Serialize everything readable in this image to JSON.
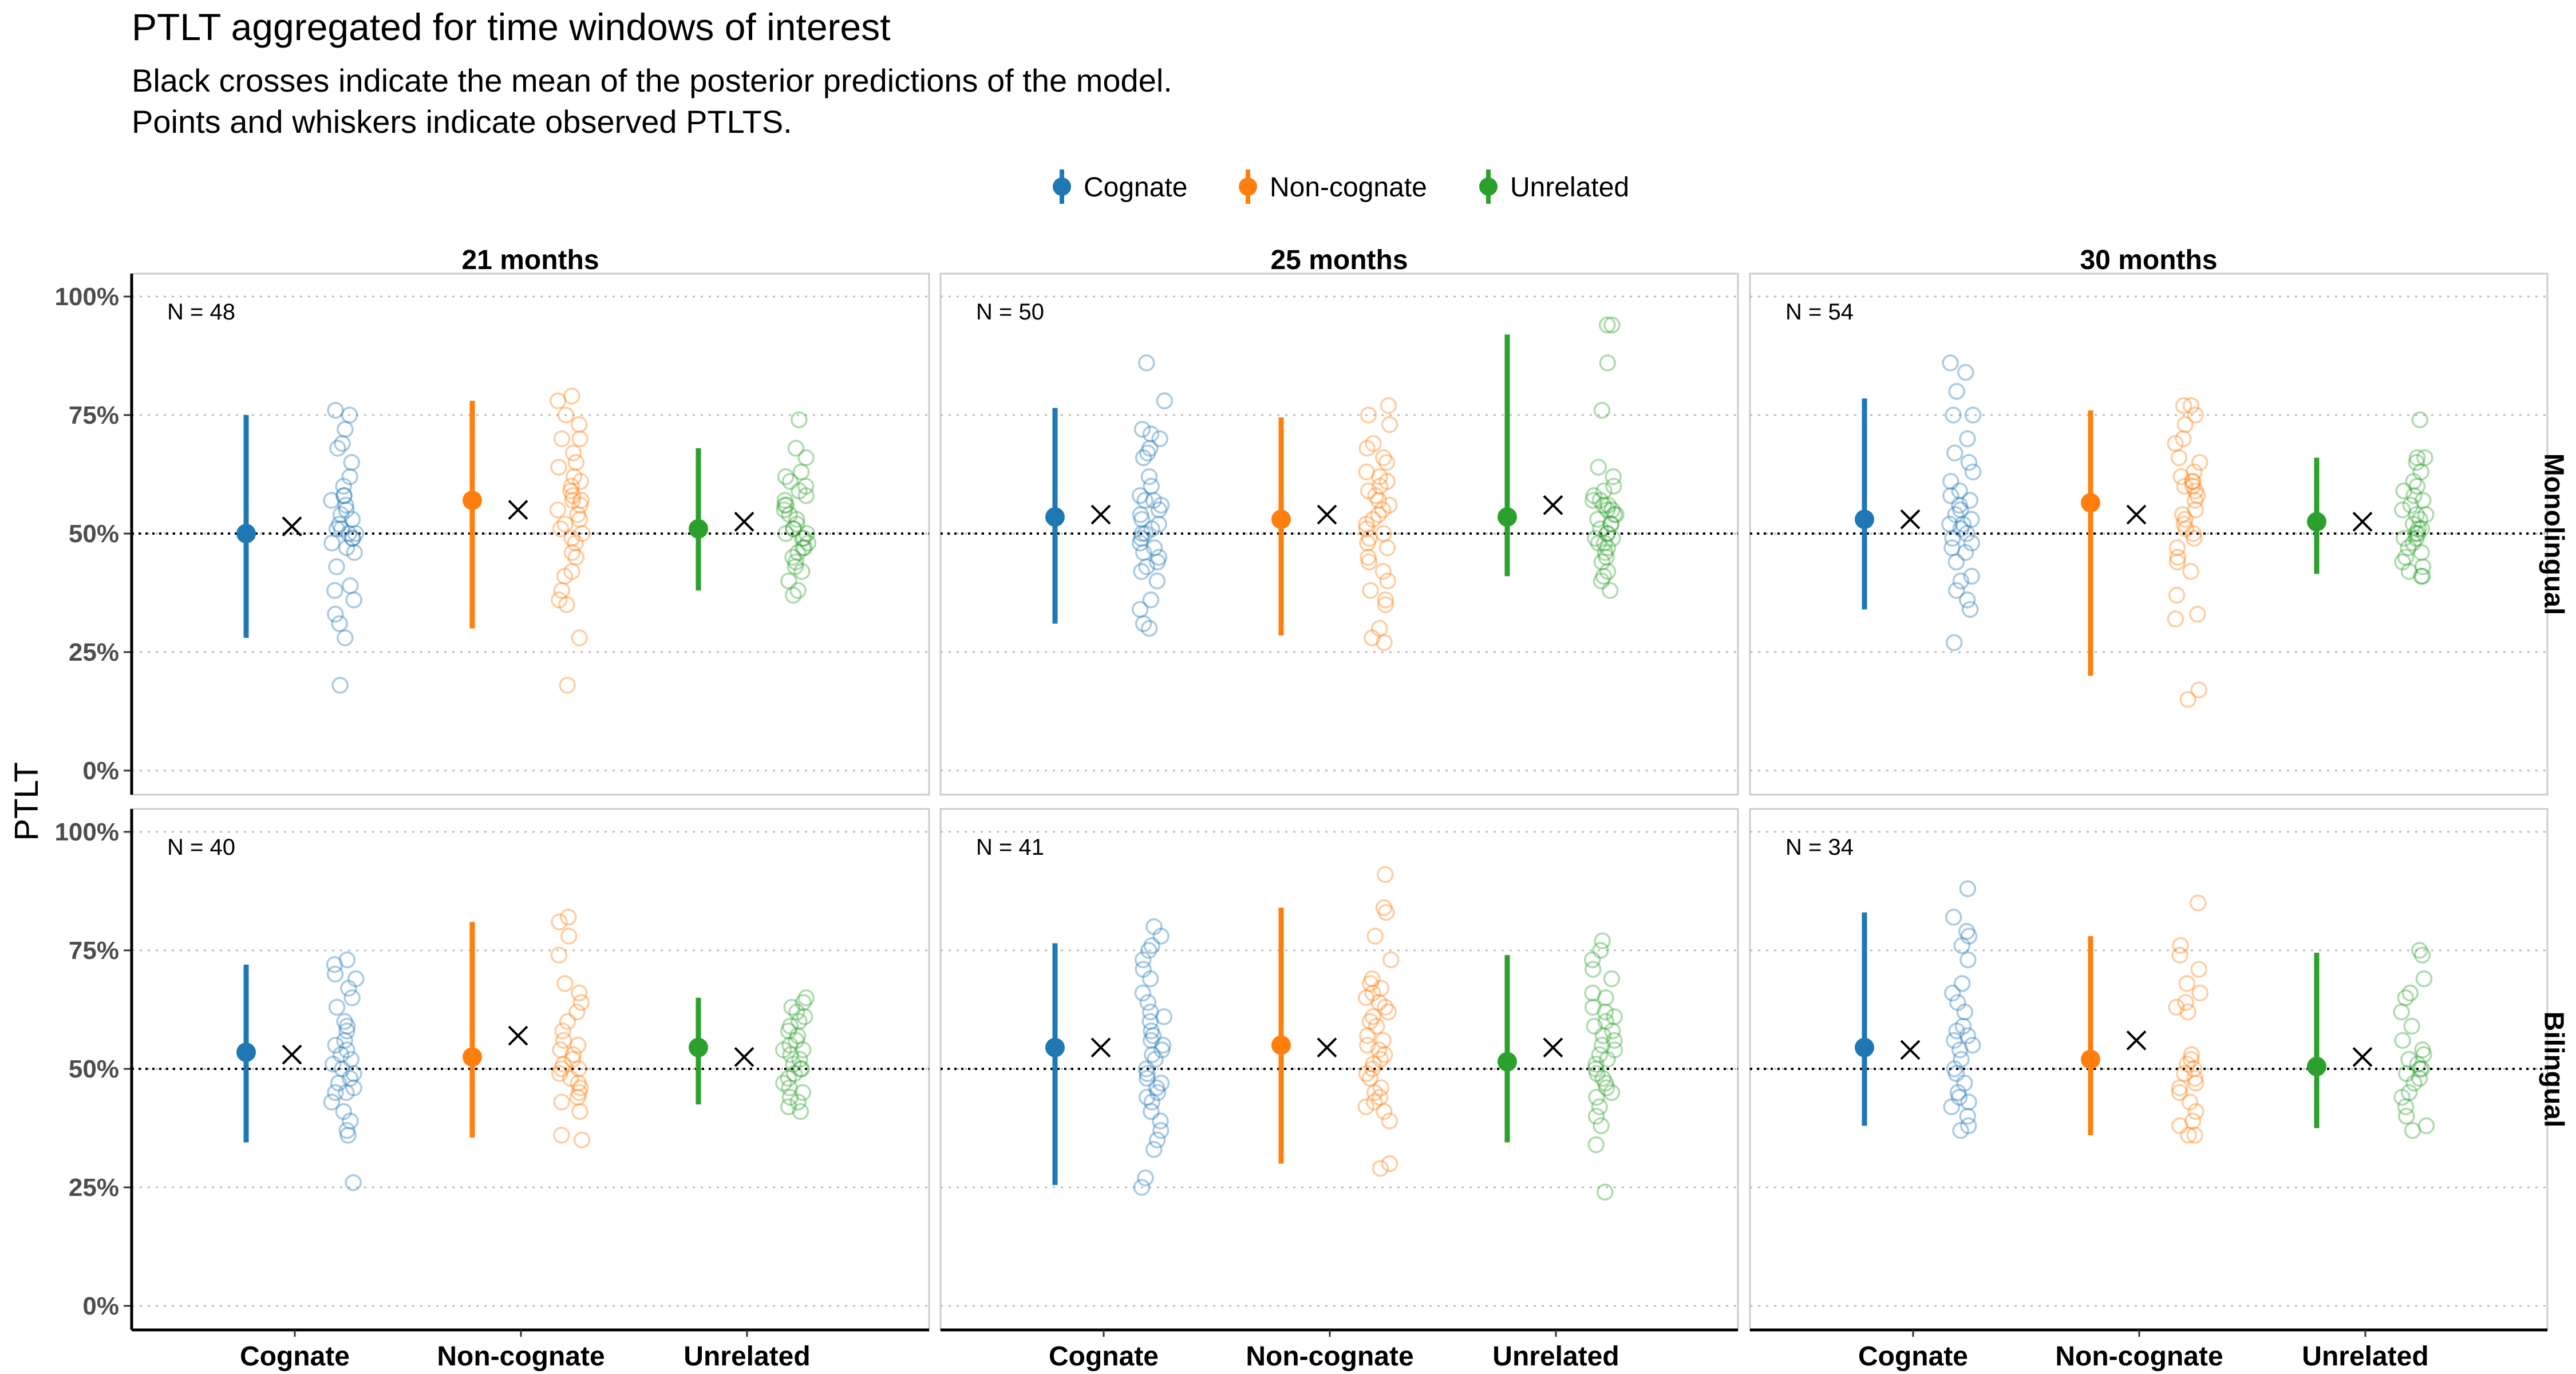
{
  "chart_data": {
    "type": "scatter",
    "title": "PTLT aggregated for time windows of interest",
    "subtitle": [
      "Black crosses indicate the mean of the posterior predictions of the model.",
      "Points and whiskers indicate observed PTLTS."
    ],
    "ylabel": "PTLT",
    "ylim": [
      0,
      1
    ],
    "y_ticks": [
      "0%",
      "25%",
      "50%",
      "75%",
      "100%"
    ],
    "y_tick_values": [
      0,
      0.25,
      0.5,
      0.75,
      1
    ],
    "reference_line": 0.5,
    "categories": [
      "Cognate",
      "Non-cognate",
      "Unrelated"
    ],
    "colors": {
      "Cognate": "#1f77b4",
      "Non-cognate": "#ff7f0e",
      "Unrelated": "#2ca02c"
    },
    "legend": {
      "placement": "top",
      "items": [
        "Cognate",
        "Non-cognate",
        "Unrelated"
      ]
    },
    "columns": [
      "21 months",
      "25 months",
      "30 months"
    ],
    "rows": [
      "Monolingual",
      "Bilingual"
    ],
    "panels": [
      {
        "row": "Monolingual",
        "column": "21 months",
        "n_label": "N = 48",
        "series": [
          {
            "category": "Cognate",
            "mean": 0.5,
            "lower": 0.28,
            "upper": 0.75,
            "prediction": 0.515,
            "points": [
              0.76,
              0.75,
              0.72,
              0.69,
              0.68,
              0.65,
              0.62,
              0.6,
              0.58,
              0.58,
              0.57,
              0.56,
              0.55,
              0.54,
              0.53,
              0.52,
              0.51,
              0.51,
              0.5,
              0.5,
              0.49,
              0.49,
              0.48,
              0.47,
              0.46,
              0.43,
              0.39,
              0.38,
              0.36,
              0.33,
              0.31,
              0.28,
              0.18
            ]
          },
          {
            "category": "Non-cognate",
            "mean": 0.57,
            "lower": 0.3,
            "upper": 0.78,
            "prediction": 0.55,
            "points": [
              0.79,
              0.78,
              0.75,
              0.73,
              0.7,
              0.7,
              0.67,
              0.65,
              0.64,
              0.62,
              0.61,
              0.6,
              0.59,
              0.58,
              0.57,
              0.57,
              0.56,
              0.55,
              0.54,
              0.53,
              0.52,
              0.51,
              0.5,
              0.49,
              0.48,
              0.46,
              0.45,
              0.42,
              0.41,
              0.38,
              0.36,
              0.35,
              0.28,
              0.18
            ]
          },
          {
            "category": "Unrelated",
            "mean": 0.51,
            "lower": 0.38,
            "upper": 0.68,
            "prediction": 0.525,
            "points": [
              0.74,
              0.68,
              0.66,
              0.63,
              0.62,
              0.61,
              0.6,
              0.59,
              0.58,
              0.57,
              0.56,
              0.56,
              0.55,
              0.54,
              0.53,
              0.52,
              0.51,
              0.51,
              0.5,
              0.5,
              0.49,
              0.49,
              0.48,
              0.47,
              0.47,
              0.46,
              0.45,
              0.44,
              0.43,
              0.42,
              0.4,
              0.38,
              0.37
            ]
          }
        ]
      },
      {
        "row": "Monolingual",
        "column": "25 months",
        "n_label": "N = 50",
        "series": [
          {
            "category": "Cognate",
            "mean": 0.535,
            "lower": 0.31,
            "upper": 0.765,
            "prediction": 0.54,
            "points": [
              0.86,
              0.78,
              0.72,
              0.71,
              0.7,
              0.68,
              0.67,
              0.66,
              0.62,
              0.6,
              0.58,
              0.57,
              0.57,
              0.56,
              0.55,
              0.54,
              0.53,
              0.52,
              0.51,
              0.5,
              0.5,
              0.49,
              0.48,
              0.47,
              0.46,
              0.45,
              0.44,
              0.43,
              0.42,
              0.4,
              0.36,
              0.34,
              0.31,
              0.3
            ]
          },
          {
            "category": "Non-cognate",
            "mean": 0.53,
            "lower": 0.285,
            "upper": 0.745,
            "prediction": 0.54,
            "points": [
              0.77,
              0.75,
              0.73,
              0.69,
              0.68,
              0.66,
              0.65,
              0.63,
              0.62,
              0.61,
              0.6,
              0.59,
              0.58,
              0.57,
              0.56,
              0.55,
              0.54,
              0.53,
              0.52,
              0.51,
              0.5,
              0.49,
              0.48,
              0.47,
              0.45,
              0.44,
              0.42,
              0.4,
              0.38,
              0.36,
              0.35,
              0.3,
              0.28,
              0.27
            ]
          },
          {
            "category": "Unrelated",
            "mean": 0.535,
            "lower": 0.41,
            "upper": 0.92,
            "prediction": 0.56,
            "points": [
              0.94,
              0.94,
              0.86,
              0.76,
              0.64,
              0.62,
              0.6,
              0.59,
              0.58,
              0.57,
              0.57,
              0.56,
              0.56,
              0.55,
              0.55,
              0.54,
              0.54,
              0.53,
              0.52,
              0.52,
              0.51,
              0.5,
              0.5,
              0.49,
              0.49,
              0.48,
              0.48,
              0.47,
              0.46,
              0.45,
              0.44,
              0.42,
              0.41,
              0.4,
              0.38
            ]
          }
        ]
      },
      {
        "row": "Monolingual",
        "column": "30 months",
        "n_label": "N = 54",
        "series": [
          {
            "category": "Cognate",
            "mean": 0.53,
            "lower": 0.34,
            "upper": 0.785,
            "prediction": 0.53,
            "points": [
              0.86,
              0.84,
              0.8,
              0.75,
              0.75,
              0.7,
              0.67,
              0.65,
              0.63,
              0.61,
              0.59,
              0.58,
              0.57,
              0.56,
              0.55,
              0.54,
              0.53,
              0.52,
              0.52,
              0.51,
              0.5,
              0.49,
              0.48,
              0.47,
              0.46,
              0.44,
              0.41,
              0.4,
              0.38,
              0.36,
              0.34,
              0.27
            ]
          },
          {
            "category": "Non-cognate",
            "mean": 0.565,
            "lower": 0.2,
            "upper": 0.76,
            "prediction": 0.54,
            "points": [
              0.77,
              0.77,
              0.75,
              0.73,
              0.7,
              0.69,
              0.66,
              0.65,
              0.63,
              0.62,
              0.61,
              0.61,
              0.6,
              0.6,
              0.59,
              0.58,
              0.57,
              0.55,
              0.54,
              0.53,
              0.52,
              0.51,
              0.5,
              0.49,
              0.47,
              0.45,
              0.44,
              0.42,
              0.37,
              0.33,
              0.32,
              0.17,
              0.15
            ]
          },
          {
            "category": "Unrelated",
            "mean": 0.525,
            "lower": 0.415,
            "upper": 0.66,
            "prediction": 0.525,
            "points": [
              0.74,
              0.66,
              0.66,
              0.65,
              0.63,
              0.61,
              0.6,
              0.59,
              0.58,
              0.57,
              0.56,
              0.55,
              0.54,
              0.54,
              0.53,
              0.52,
              0.51,
              0.51,
              0.5,
              0.5,
              0.49,
              0.49,
              0.48,
              0.47,
              0.46,
              0.45,
              0.44,
              0.43,
              0.42,
              0.41,
              0.41
            ]
          }
        ]
      },
      {
        "row": "Bilingual",
        "column": "21 months",
        "n_label": "N = 40",
        "series": [
          {
            "category": "Cognate",
            "mean": 0.535,
            "lower": 0.345,
            "upper": 0.72,
            "prediction": 0.53,
            "points": [
              0.73,
              0.72,
              0.7,
              0.69,
              0.67,
              0.65,
              0.63,
              0.6,
              0.59,
              0.58,
              0.56,
              0.55,
              0.54,
              0.53,
              0.52,
              0.51,
              0.5,
              0.49,
              0.48,
              0.47,
              0.46,
              0.45,
              0.45,
              0.43,
              0.41,
              0.39,
              0.37,
              0.36,
              0.26
            ]
          },
          {
            "category": "Non-cognate",
            "mean": 0.525,
            "lower": 0.355,
            "upper": 0.81,
            "prediction": 0.57,
            "points": [
              0.82,
              0.81,
              0.78,
              0.74,
              0.68,
              0.66,
              0.64,
              0.62,
              0.6,
              0.58,
              0.56,
              0.55,
              0.54,
              0.53,
              0.52,
              0.51,
              0.5,
              0.5,
              0.49,
              0.48,
              0.47,
              0.46,
              0.45,
              0.44,
              0.43,
              0.41,
              0.36,
              0.35
            ]
          },
          {
            "category": "Unrelated",
            "mean": 0.545,
            "lower": 0.425,
            "upper": 0.65,
            "prediction": 0.525,
            "points": [
              0.65,
              0.64,
              0.63,
              0.62,
              0.61,
              0.6,
              0.59,
              0.58,
              0.57,
              0.56,
              0.55,
              0.54,
              0.54,
              0.53,
              0.52,
              0.51,
              0.5,
              0.5,
              0.49,
              0.48,
              0.47,
              0.46,
              0.45,
              0.44,
              0.43,
              0.42,
              0.41
            ]
          }
        ]
      },
      {
        "row": "Bilingual",
        "column": "25 months",
        "n_label": "N = 41",
        "series": [
          {
            "category": "Cognate",
            "mean": 0.545,
            "lower": 0.255,
            "upper": 0.765,
            "prediction": 0.545,
            "points": [
              0.8,
              0.78,
              0.76,
              0.75,
              0.73,
              0.71,
              0.69,
              0.66,
              0.64,
              0.62,
              0.61,
              0.6,
              0.58,
              0.57,
              0.56,
              0.55,
              0.54,
              0.53,
              0.52,
              0.5,
              0.49,
              0.48,
              0.47,
              0.46,
              0.45,
              0.44,
              0.43,
              0.41,
              0.39,
              0.37,
              0.35,
              0.33,
              0.27,
              0.25
            ]
          },
          {
            "category": "Non-cognate",
            "mean": 0.55,
            "lower": 0.3,
            "upper": 0.84,
            "prediction": 0.545,
            "points": [
              0.91,
              0.84,
              0.83,
              0.78,
              0.73,
              0.69,
              0.68,
              0.67,
              0.66,
              0.65,
              0.64,
              0.63,
              0.62,
              0.61,
              0.6,
              0.59,
              0.57,
              0.56,
              0.55,
              0.54,
              0.53,
              0.52,
              0.51,
              0.5,
              0.49,
              0.48,
              0.46,
              0.45,
              0.44,
              0.43,
              0.42,
              0.41,
              0.39,
              0.3,
              0.29
            ]
          },
          {
            "category": "Unrelated",
            "mean": 0.515,
            "lower": 0.345,
            "upper": 0.74,
            "prediction": 0.545,
            "points": [
              0.77,
              0.75,
              0.73,
              0.71,
              0.69,
              0.66,
              0.65,
              0.63,
              0.62,
              0.61,
              0.6,
              0.59,
              0.58,
              0.57,
              0.56,
              0.55,
              0.54,
              0.53,
              0.52,
              0.51,
              0.5,
              0.49,
              0.48,
              0.47,
              0.46,
              0.45,
              0.44,
              0.42,
              0.4,
              0.38,
              0.34,
              0.24
            ]
          }
        ]
      },
      {
        "row": "Bilingual",
        "column": "30 months",
        "n_label": "N = 34",
        "series": [
          {
            "category": "Cognate",
            "mean": 0.545,
            "lower": 0.38,
            "upper": 0.83,
            "prediction": 0.54,
            "points": [
              0.88,
              0.82,
              0.79,
              0.78,
              0.76,
              0.73,
              0.68,
              0.66,
              0.64,
              0.62,
              0.59,
              0.58,
              0.57,
              0.56,
              0.55,
              0.54,
              0.52,
              0.5,
              0.49,
              0.47,
              0.45,
              0.44,
              0.43,
              0.42,
              0.4,
              0.38,
              0.37
            ]
          },
          {
            "category": "Non-cognate",
            "mean": 0.52,
            "lower": 0.36,
            "upper": 0.78,
            "prediction": 0.56,
            "points": [
              0.85,
              0.76,
              0.74,
              0.71,
              0.68,
              0.66,
              0.64,
              0.63,
              0.62,
              0.53,
              0.52,
              0.51,
              0.5,
              0.49,
              0.48,
              0.47,
              0.46,
              0.45,
              0.43,
              0.41,
              0.39,
              0.38,
              0.36,
              0.36
            ]
          },
          {
            "category": "Unrelated",
            "mean": 0.505,
            "lower": 0.375,
            "upper": 0.745,
            "prediction": 0.525,
            "points": [
              0.75,
              0.74,
              0.69,
              0.66,
              0.65,
              0.62,
              0.59,
              0.56,
              0.54,
              0.53,
              0.52,
              0.51,
              0.5,
              0.5,
              0.49,
              0.48,
              0.47,
              0.45,
              0.44,
              0.42,
              0.4,
              0.38,
              0.37
            ]
          }
        ]
      }
    ]
  }
}
